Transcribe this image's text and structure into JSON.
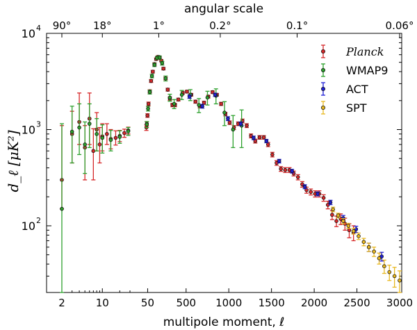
{
  "chart_data": {
    "type": "scatter",
    "title": "angular scale",
    "xlabel": "multipole moment, ℓ",
    "ylabel": "d_ℓ [μK²]",
    "ylim": [
      20,
      10000
    ],
    "yscale": "log",
    "xscale": "log for ℓ ≤ 30, linear for ℓ > 30",
    "top_ticks": [
      {
        "label": "90°",
        "ell": 2
      },
      {
        "label": "18°",
        "ell": 10
      },
      {
        "label": "1°",
        "ell": 180
      },
      {
        "label": "0.2°",
        "ell": 900
      },
      {
        "label": "0.1°",
        "ell": 1800
      },
      {
        "label": "0.06°",
        "ell": 3000
      }
    ],
    "bottom_ticks": [
      {
        "label": "2",
        "ell": 2
      },
      {
        "label": "10",
        "ell": 10
      },
      {
        "label": "50",
        "ell": 50
      },
      {
        "label": "500",
        "ell": 500
      },
      {
        "label": "1000",
        "ell": 1000
      },
      {
        "label": "1500",
        "ell": 1500
      },
      {
        "label": "2000",
        "ell": 2000
      },
      {
        "label": "2500",
        "ell": 2500
      },
      {
        "label": "3000",
        "ell": 3000
      }
    ],
    "y_ticks": [
      {
        "label": "10",
        "exp": "2",
        "value": 100
      },
      {
        "label": "10",
        "exp": "3",
        "value": 1000
      },
      {
        "label": "10",
        "exp": "4",
        "value": 10000
      }
    ],
    "series": [
      {
        "name": "Planck",
        "color": "#d62728",
        "points": [
          [
            2,
            300,
            150,
            800
          ],
          [
            3,
            900,
            450,
            650
          ],
          [
            4,
            1200,
            500,
            1200
          ],
          [
            5,
            650,
            350,
            450
          ],
          [
            6,
            1300,
            600,
            1100
          ],
          [
            7,
            600,
            300,
            420
          ],
          [
            8,
            1000,
            400,
            500
          ],
          [
            9,
            700,
            250,
            350
          ],
          [
            10,
            850,
            250,
            300
          ],
          [
            12,
            900,
            200,
            250
          ],
          [
            14,
            800,
            170,
            200
          ],
          [
            17,
            820,
            130,
            150
          ],
          [
            20,
            860,
            110,
            120
          ],
          [
            24,
            920,
            90,
            90
          ],
          [
            28,
            980,
            80,
            80
          ],
          [
            35,
            1050,
            70,
            70
          ],
          [
            40,
            1150,
            60,
            60
          ],
          [
            48,
            1400,
            60,
            60
          ],
          [
            60,
            1850,
            80,
            80
          ],
          [
            75,
            2500,
            90,
            90
          ],
          [
            90,
            3200,
            110,
            110
          ],
          [
            110,
            4000,
            130,
            130
          ],
          [
            130,
            4800,
            140,
            140
          ],
          [
            150,
            5400,
            150,
            150
          ],
          [
            170,
            5700,
            150,
            150
          ],
          [
            190,
            5650,
            150,
            150
          ],
          [
            210,
            5200,
            140,
            140
          ],
          [
            235,
            4300,
            130,
            130
          ],
          [
            260,
            3400,
            100,
            100
          ],
          [
            285,
            2600,
            90,
            90
          ],
          [
            310,
            2100,
            80,
            80
          ],
          [
            340,
            1800,
            70,
            70
          ],
          [
            370,
            1800,
            70,
            70
          ],
          [
            410,
            2050,
            70,
            70
          ],
          [
            460,
            2400,
            80,
            80
          ],
          [
            510,
            2480,
            80,
            80
          ],
          [
            560,
            2300,
            75,
            75
          ],
          [
            610,
            1950,
            70,
            70
          ],
          [
            660,
            1750,
            70,
            70
          ],
          [
            710,
            1900,
            70,
            70
          ],
          [
            760,
            2200,
            75,
            75
          ],
          [
            810,
            2450,
            80,
            80
          ],
          [
            860,
            2300,
            75,
            75
          ],
          [
            910,
            1850,
            70,
            70
          ],
          [
            960,
            1450,
            60,
            60
          ],
          [
            1010,
            1180,
            50,
            50
          ],
          [
            1060,
            1050,
            50,
            50
          ],
          [
            1110,
            1150,
            50,
            50
          ],
          [
            1160,
            1230,
            55,
            55
          ],
          [
            1210,
            1100,
            50,
            50
          ],
          [
            1260,
            860,
            40,
            40
          ],
          [
            1310,
            760,
            35,
            35
          ],
          [
            1360,
            830,
            35,
            35
          ],
          [
            1410,
            830,
            35,
            35
          ],
          [
            1460,
            700,
            35,
            35
          ],
          [
            1510,
            550,
            30,
            30
          ],
          [
            1560,
            450,
            25,
            25
          ],
          [
            1610,
            390,
            22,
            22
          ],
          [
            1660,
            380,
            22,
            22
          ],
          [
            1710,
            380,
            22,
            22
          ],
          [
            1760,
            350,
            20,
            20
          ],
          [
            1810,
            320,
            20,
            20
          ],
          [
            1860,
            270,
            18,
            18
          ],
          [
            1910,
            235,
            17,
            17
          ],
          [
            1960,
            225,
            16,
            16
          ],
          [
            2010,
            215,
            16,
            16
          ],
          [
            2060,
            215,
            16,
            16
          ],
          [
            2110,
            195,
            15,
            15
          ],
          [
            2160,
            165,
            15,
            15
          ],
          [
            2210,
            130,
            14,
            14
          ],
          [
            2260,
            112,
            14,
            14
          ],
          [
            2310,
            118,
            15,
            15
          ],
          [
            2360,
            105,
            15,
            15
          ],
          [
            2410,
            90,
            15,
            15
          ],
          [
            2460,
            85,
            15,
            15
          ]
        ]
      },
      {
        "name": "WMAP9",
        "color": "#2ca02c",
        "points": [
          [
            2,
            150,
            130,
            1000
          ],
          [
            3,
            950,
            500,
            800
          ],
          [
            4,
            1050,
            500,
            800
          ],
          [
            5,
            700,
            350,
            500
          ],
          [
            6,
            1150,
            500,
            700
          ],
          [
            8,
            900,
            300,
            400
          ],
          [
            10,
            820,
            250,
            300
          ],
          [
            14,
            780,
            180,
            200
          ],
          [
            20,
            840,
            120,
            130
          ],
          [
            28,
            960,
            90,
            90
          ],
          [
            40,
            1130,
            80,
            80
          ],
          [
            55,
            1650,
            90,
            90
          ],
          [
            75,
            2450,
            110,
            110
          ],
          [
            100,
            3600,
            150,
            150
          ],
          [
            130,
            4700,
            180,
            180
          ],
          [
            160,
            5550,
            200,
            200
          ],
          [
            190,
            5600,
            220,
            220
          ],
          [
            220,
            4900,
            220,
            220
          ],
          [
            260,
            3400,
            200,
            200
          ],
          [
            310,
            2150,
            180,
            180
          ],
          [
            360,
            1850,
            200,
            200
          ],
          [
            450,
            2300,
            250,
            250
          ],
          [
            550,
            2300,
            300,
            300
          ],
          [
            650,
            1800,
            300,
            300
          ],
          [
            750,
            2150,
            350,
            350
          ],
          [
            850,
            2250,
            400,
            400
          ],
          [
            950,
            1500,
            400,
            450
          ],
          [
            1050,
            1000,
            350,
            400
          ],
          [
            1150,
            1100,
            450,
            500
          ]
        ]
      },
      {
        "name": "ACT",
        "color": "#1f1fd8",
        "points": [
          [
            540,
            2200,
            90,
            90
          ],
          [
            690,
            1750,
            80,
            80
          ],
          [
            840,
            2300,
            90,
            90
          ],
          [
            990,
            1300,
            60,
            60
          ],
          [
            1140,
            1150,
            50,
            50
          ],
          [
            1290,
            820,
            35,
            35
          ],
          [
            1440,
            760,
            30,
            30
          ],
          [
            1590,
            470,
            20,
            20
          ],
          [
            1740,
            370,
            16,
            16
          ],
          [
            1890,
            255,
            12,
            12
          ],
          [
            2040,
            215,
            10,
            10
          ],
          [
            2190,
            175,
            9,
            9
          ],
          [
            2340,
            120,
            8,
            8
          ],
          [
            2490,
            92,
            7,
            7
          ],
          [
            2640,
            60,
            6,
            6
          ],
          [
            2790,
            48,
            5,
            5
          ]
        ]
      },
      {
        "name": "SPT",
        "color": "#e8b820",
        "points": [
          [
            2220,
            148,
            8,
            8
          ],
          [
            2280,
            128,
            7,
            7
          ],
          [
            2340,
            112,
            7,
            7
          ],
          [
            2400,
            100,
            6,
            6
          ],
          [
            2460,
            88,
            6,
            6
          ],
          [
            2520,
            78,
            6,
            6
          ],
          [
            2580,
            68,
            6,
            6
          ],
          [
            2640,
            60,
            6,
            6
          ],
          [
            2700,
            54,
            6,
            6
          ],
          [
            2760,
            46,
            6,
            6
          ],
          [
            2820,
            38,
            6,
            6
          ],
          [
            2880,
            33,
            6,
            6
          ],
          [
            2940,
            30,
            7,
            7
          ],
          [
            3000,
            27,
            7,
            7
          ]
        ]
      }
    ],
    "legend": {
      "placement": "top-right",
      "entries": [
        "Planck",
        "WMAP9",
        "ACT",
        "SPT"
      ]
    }
  }
}
